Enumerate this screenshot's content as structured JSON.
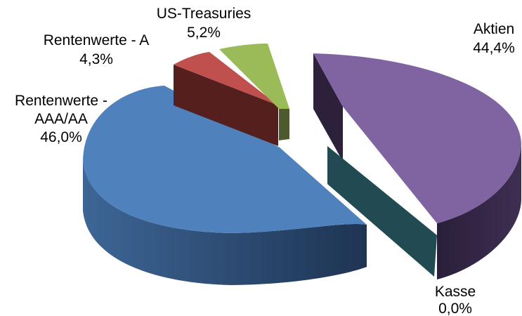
{
  "chart_data": {
    "type": "pie",
    "style": "3d-exploded",
    "legend": "none",
    "slices": [
      {
        "label": "Aktien",
        "value": 44.4,
        "value_label": "44,4%",
        "color": "#8064A2"
      },
      {
        "label": "Kasse",
        "value": 0.0,
        "value_label": "0,0%",
        "color": "#2B5C63"
      },
      {
        "label": "Rentenwerte - AAA/AA",
        "label_lines": [
          "Rentenwerte -",
          "AAA/AA"
        ],
        "value": 46.0,
        "value_label": "46,0%",
        "color": "#4F81BD"
      },
      {
        "label": "Rentenwerte - A",
        "value": 4.3,
        "value_label": "4,3%",
        "color": "#C0504D"
      },
      {
        "label": "US-Treasuries",
        "value": 5.2,
        "value_label": "5,2%",
        "color": "#9BBB59"
      }
    ]
  }
}
